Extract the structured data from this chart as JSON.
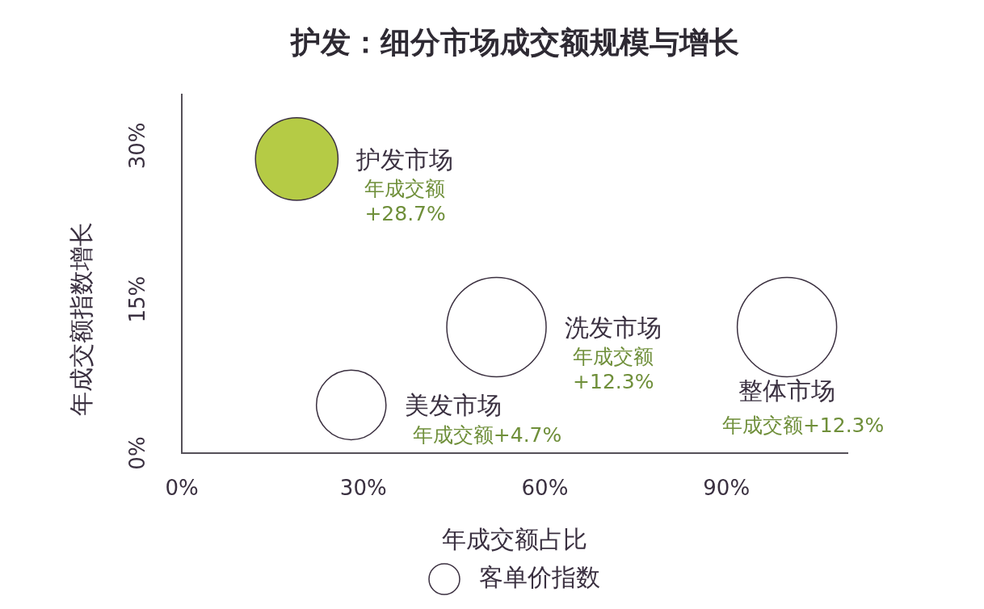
{
  "chart_data": {
    "type": "bubble",
    "title": "护发：细分市场成交额规模与增长",
    "xlabel": "年成交额占比",
    "ylabel": "年成交额指数增长",
    "x": [
      19,
      28,
      52,
      100
    ],
    "series": [
      {
        "name": "客单价指数",
        "color": "#ffffff",
        "colors": [
          "#b5cb45",
          "#ffffff",
          "#ffffff",
          "#ffffff"
        ],
        "values": [
          28.7,
          4.7,
          12.3,
          12.3
        ],
        "sizes": [
          0.69,
          0.49,
          1,
          1
        ],
        "value_labels": [
          "年成交额\n+28.7%",
          "年成交额+4.7%",
          "年成交额\n+12.3%",
          "年成交额+12.3%"
        ]
      }
    ],
    "annotations": [
      {
        "text": "护发市场",
        "x": 19,
        "y": 28.7
      },
      {
        "text": "美发市场",
        "x": 28,
        "y": 4.7
      },
      {
        "text": "洗发市场",
        "x": 52,
        "y": 12.3
      },
      {
        "text": "整体市场",
        "x": 100,
        "y": 12.3
      }
    ],
    "xlim": [
      0,
      110
    ],
    "ylim": [
      0,
      35
    ],
    "xticks": [
      {
        "value": 0,
        "label": "0%"
      },
      {
        "value": 30,
        "label": "30%"
      },
      {
        "value": 60,
        "label": "60%"
      },
      {
        "value": 90,
        "label": "90%"
      }
    ],
    "yticks": [
      {
        "value": 0,
        "label": "0%"
      },
      {
        "value": 15,
        "label": "15%"
      },
      {
        "value": 30,
        "label": "30%"
      }
    ],
    "grid": false,
    "legend": "bottom"
  }
}
